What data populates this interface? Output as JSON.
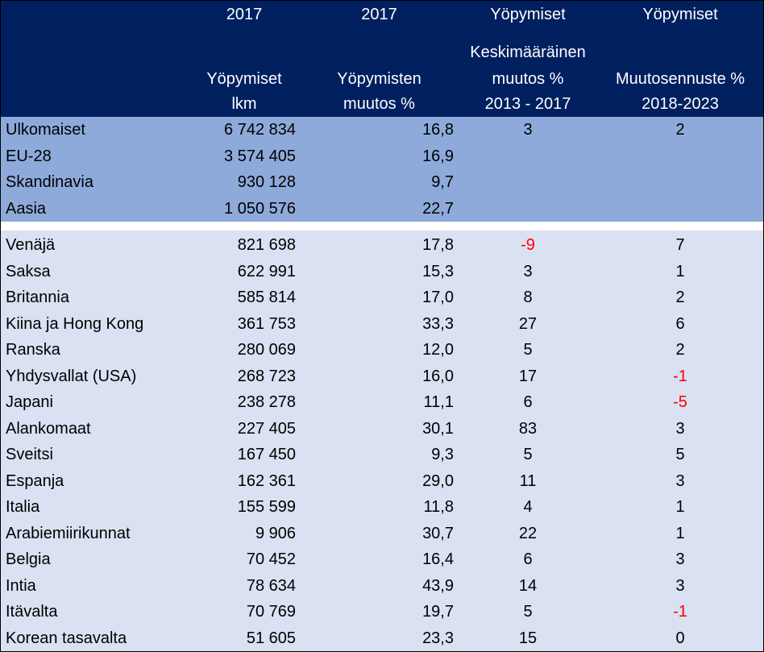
{
  "header": {
    "col_count": [
      "2017",
      "Yöpymiset",
      "lkm"
    ],
    "col_change": [
      "2017",
      "Yöpymisten",
      "muutos %"
    ],
    "col_avg": [
      "Yöpymiset",
      "Keskimääräinen",
      "muutos %",
      "2013 - 2017"
    ],
    "col_forecast": [
      "Yöpymiset",
      "Muutosennuste %",
      "2018-2023"
    ]
  },
  "summary_rows": [
    {
      "name": "Ulkomaiset",
      "count": "6 742 834",
      "change": "16,8",
      "avg": "3",
      "forecast": "2"
    },
    {
      "name": "EU-28",
      "count": "3 574 405",
      "change": "16,9",
      "avg": "",
      "forecast": ""
    },
    {
      "name": "Skandinavia",
      "count": "930 128",
      "change": "9,7",
      "avg": "",
      "forecast": ""
    },
    {
      "name": "Aasia",
      "count": "1 050 576",
      "change": "22,7",
      "avg": "",
      "forecast": ""
    }
  ],
  "country_rows": [
    {
      "name": "Venäjä",
      "count": "821 698",
      "change": "17,8",
      "avg": "-9",
      "forecast": "7"
    },
    {
      "name": "Saksa",
      "count": "622 991",
      "change": "15,3",
      "avg": "3",
      "forecast": "1"
    },
    {
      "name": "Britannia",
      "count": "585 814",
      "change": "17,0",
      "avg": "8",
      "forecast": "2"
    },
    {
      "name": "Kiina ja Hong Kong",
      "count": "361 753",
      "change": "33,3",
      "avg": "27",
      "forecast": "6"
    },
    {
      "name": "Ranska",
      "count": "280 069",
      "change": "12,0",
      "avg": "5",
      "forecast": "2"
    },
    {
      "name": "Yhdysvallat (USA)",
      "count": "268 723",
      "change": "16,0",
      "avg": "17",
      "forecast": "-1"
    },
    {
      "name": "Japani",
      "count": "238 278",
      "change": "11,1",
      "avg": "6",
      "forecast": "-5"
    },
    {
      "name": "Alankomaat",
      "count": "227 405",
      "change": "30,1",
      "avg": "83",
      "forecast": "3"
    },
    {
      "name": "Sveitsi",
      "count": "167 450",
      "change": "9,3",
      "avg": "5",
      "forecast": "5"
    },
    {
      "name": "Espanja",
      "count": "162 361",
      "change": "29,0",
      "avg": "11",
      "forecast": "3"
    },
    {
      "name": "Italia",
      "count": "155 599",
      "change": "11,8",
      "avg": "4",
      "forecast": "1"
    },
    {
      "name": "Arabiemiirikunnat",
      "count": "9 906",
      "change": "30,7",
      "avg": "22",
      "forecast": "1"
    },
    {
      "name": "Belgia",
      "count": "70 452",
      "change": "16,4",
      "avg": "6",
      "forecast": "3"
    },
    {
      "name": "Intia",
      "count": "78 634",
      "change": "43,9",
      "avg": "14",
      "forecast": "3"
    },
    {
      "name": "Itävalta",
      "count": "70 769",
      "change": "19,7",
      "avg": "5",
      "forecast": "-1"
    },
    {
      "name": "Korean tasavalta",
      "count": "51 605",
      "change": "23,3",
      "avg": "15",
      "forecast": "0"
    }
  ],
  "negative_color": "#ff0000"
}
